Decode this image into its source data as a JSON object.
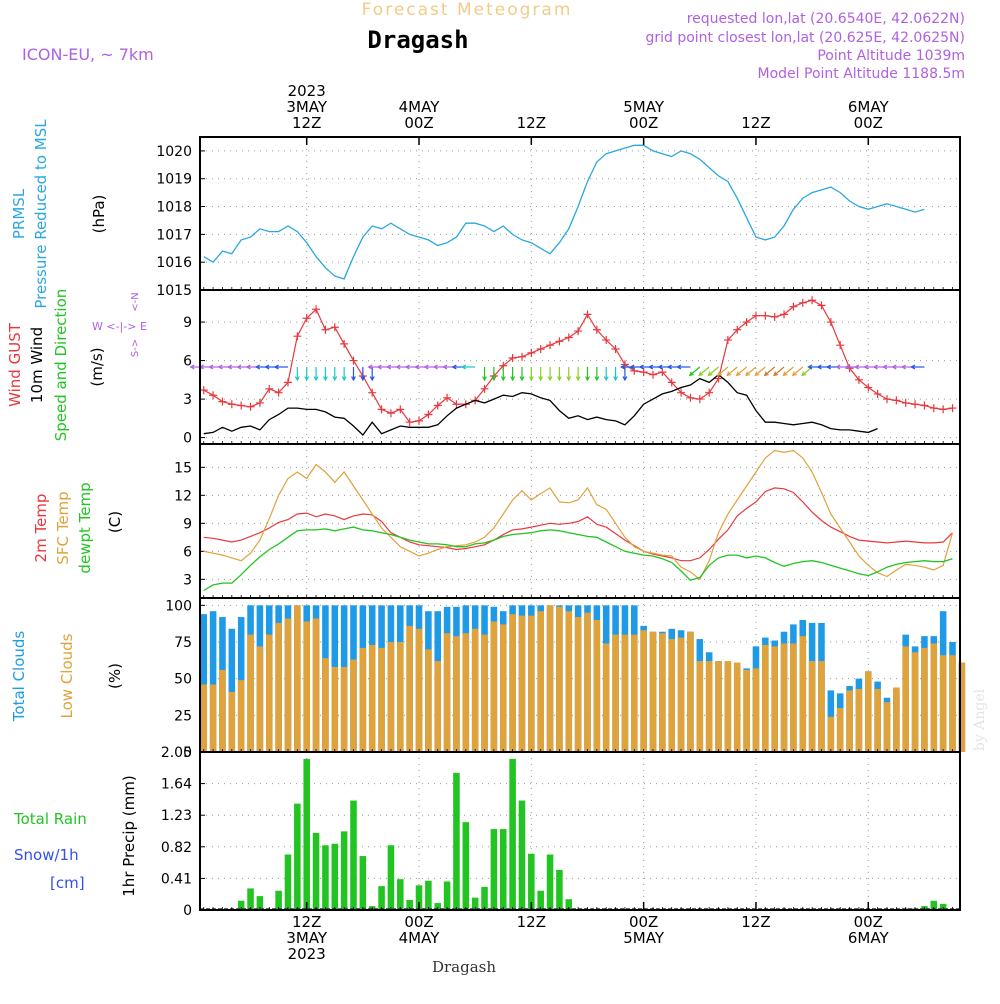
{
  "header": {
    "title": "Dragash",
    "subtitle": "Forecast Meteogram",
    "model": "ICON-EU, ~ 7km",
    "requested": "requested lon,lat (20.6540E, 42.0622N)",
    "gridpoint": "grid point closest lon,lat (20.625E, 42.0625N)",
    "point_alt": "Point Altitude 1039m",
    "model_alt": "Model Point Altitude 1188.5m",
    "footer": "Dragash",
    "credit": "by Angel"
  },
  "colors": {
    "pressure": "#2aa7e0",
    "gust": "#e8383d",
    "wind": "#000000",
    "green": "#22c422",
    "orange": "#e0a23a",
    "blue": "#1e9ae6",
    "purple": "#b060e0",
    "snow": "#3050e8",
    "grid": "#999999"
  },
  "time_axis": {
    "top_labels": [
      {
        "t": 4,
        "lines": [
          "2023",
          "3MAY",
          "12Z"
        ]
      },
      {
        "t": 16,
        "lines": [
          "4MAY",
          "00Z"
        ]
      },
      {
        "t": 28,
        "lines": [
          "12Z"
        ]
      },
      {
        "t": 40,
        "lines": [
          "5MAY",
          "00Z"
        ]
      },
      {
        "t": 52,
        "lines": [
          "12Z"
        ]
      },
      {
        "t": 64,
        "lines": [
          "6MAY",
          "00Z"
        ]
      }
    ],
    "bottom_labels": [
      {
        "t": 4,
        "lines": [
          "12Z",
          "3MAY",
          "2023"
        ]
      },
      {
        "t": 16,
        "lines": [
          "00Z",
          "4MAY"
        ]
      },
      {
        "t": 28,
        "lines": [
          "12Z"
        ]
      },
      {
        "t": 40,
        "lines": [
          "00Z",
          "5MAY"
        ]
      },
      {
        "t": 52,
        "lines": [
          "12Z"
        ]
      },
      {
        "t": 64,
        "lines": [
          "00Z",
          "6MAY"
        ]
      }
    ]
  },
  "chart_data": [
    {
      "type": "line",
      "title": "",
      "ylabel_left": [
        "PRMSL",
        "Pressure Reduced to MSL"
      ],
      "ylabel_unit": "(hPa)",
      "ylim": [
        1015,
        1020.5
      ],
      "yticks": [
        1015,
        1016,
        1017,
        1018,
        1019,
        1020
      ],
      "grid": true,
      "series": [
        {
          "name": "PRMSL",
          "x_start": -7,
          "values": [
            1016.2,
            1016.0,
            1016.4,
            1016.3,
            1016.8,
            1016.9,
            1017.2,
            1017.1,
            1017.1,
            1017.3,
            1017.1,
            1016.7,
            1016.2,
            1015.8,
            1015.5,
            1015.4,
            1016.2,
            1016.9,
            1017.3,
            1017.2,
            1017.4,
            1017.2,
            1017.0,
            1016.9,
            1016.8,
            1016.6,
            1016.7,
            1016.9,
            1017.4,
            1017.4,
            1017.3,
            1017.1,
            1017.3,
            1017.0,
            1016.8,
            1016.7,
            1016.5,
            1016.3,
            1016.7,
            1017.2,
            1018.0,
            1018.9,
            1019.6,
            1019.9,
            1020.0,
            1020.1,
            1020.2,
            1020.2,
            1020.0,
            1019.9,
            1019.8,
            1020.0,
            1019.9,
            1019.7,
            1019.4,
            1019.1,
            1018.9,
            1018.3,
            1017.6,
            1016.9,
            1016.8,
            1016.9,
            1017.3,
            1017.9,
            1018.3,
            1018.5,
            1018.6,
            1018.7,
            1018.5,
            1018.2,
            1018.0,
            1017.9,
            1018.0,
            1018.1,
            1018.0,
            1017.9,
            1017.8,
            1017.9
          ]
        }
      ]
    },
    {
      "type": "line",
      "title": "",
      "ylabel_left": [
        "Wind GUST",
        "10m Wind",
        "Speed and Direction"
      ],
      "ylabel_unit": "(m/s)",
      "compass": [
        "N",
        "W <-|-> E",
        "S"
      ],
      "ylim": [
        -0.5,
        11.5
      ],
      "yticks": [
        0,
        3,
        6,
        9
      ],
      "grid": true,
      "series": [
        {
          "name": "Wind GUST",
          "x_start": -7,
          "values": [
            3.7,
            3.3,
            2.8,
            2.6,
            2.5,
            2.4,
            2.7,
            3.8,
            3.5,
            4.3,
            7.9,
            9.3,
            10.0,
            8.4,
            8.6,
            7.3,
            6.0,
            4.8,
            3.5,
            2.2,
            1.9,
            2.2,
            1.2,
            1.3,
            1.8,
            2.5,
            3.1,
            2.6,
            2.6,
            2.9,
            3.8,
            4.8,
            5.6,
            6.2,
            6.3,
            6.6,
            6.9,
            7.2,
            7.5,
            7.8,
            8.3,
            9.6,
            8.4,
            7.6,
            6.9,
            5.7,
            5.2,
            5.1,
            4.9,
            5.1,
            4.3,
            3.5,
            3.1,
            3.0,
            3.5,
            4.6,
            7.6,
            8.4,
            9.0,
            9.5,
            9.5,
            9.4,
            9.6,
            10.2,
            10.5,
            10.7,
            10.3,
            9.0,
            7.2,
            5.4,
            4.5,
            3.9,
            3.4,
            3.0,
            2.9,
            2.7,
            2.6,
            2.5,
            2.3,
            2.2,
            2.3
          ]
        },
        {
          "name": "10m Wind",
          "x_start": -7,
          "values": [
            0.3,
            0.4,
            0.8,
            0.5,
            0.8,
            0.9,
            0.6,
            1.4,
            1.8,
            2.3,
            2.3,
            2.2,
            2.2,
            2.0,
            1.6,
            1.5,
            0.9,
            0.2,
            1.2,
            0.3,
            0.6,
            0.9,
            0.8,
            0.8,
            0.8,
            1.0,
            1.7,
            2.3,
            2.6,
            2.9,
            2.7,
            3.0,
            3.3,
            3.2,
            3.5,
            3.4,
            3.1,
            2.9,
            2.1,
            1.5,
            1.7,
            1.4,
            1.6,
            1.4,
            1.3,
            1.0,
            1.7,
            2.6,
            3.0,
            3.4,
            3.6,
            3.9,
            4.1,
            4.6,
            4.3,
            4.9,
            4.3,
            3.5,
            3.3,
            2.1,
            1.2,
            1.2,
            1.1,
            1.0,
            1.1,
            1.2,
            1.0,
            0.7,
            0.6,
            0.6,
            0.5,
            0.4,
            0.7
          ]
        }
      ],
      "wind_barbs": {
        "baseline": 5.5,
        "x_start": -7,
        "directions_deg": [
          270,
          270,
          270,
          270,
          270,
          270,
          270,
          270,
          270,
          270,
          180,
          180,
          180,
          180,
          180,
          180,
          180,
          180,
          180,
          270,
          270,
          270,
          270,
          270,
          270,
          270,
          270,
          270,
          270,
          270,
          180,
          180,
          180,
          180,
          180,
          180,
          180,
          180,
          180,
          180,
          180,
          180,
          180,
          180,
          180,
          180,
          270,
          270,
          270,
          270,
          270,
          270,
          270,
          230,
          230,
          230,
          230,
          230,
          230,
          230,
          230,
          230,
          230,
          230,
          230,
          230,
          270,
          270,
          270,
          270,
          270,
          270,
          270,
          270,
          270,
          270,
          270,
          270
        ],
        "colors": [
          "#b060e0",
          "#b060e0",
          "#b060e0",
          "#b060e0",
          "#b060e0",
          "#b060e0",
          "#b060e0",
          "#2255e8",
          "#2255e8",
          "#2255e8",
          "#18c8c8",
          "#18c8c8",
          "#18c8c8",
          "#18c8c8",
          "#18c8c8",
          "#18c8c8",
          "#2255e8",
          "#2255e8",
          "#2255e8",
          "#b060e0",
          "#b060e0",
          "#b060e0",
          "#b060e0",
          "#b060e0",
          "#b060e0",
          "#b060e0",
          "#b060e0",
          "#b060e0",
          "#2255e8",
          "#18c8c8",
          "#22c422",
          "#22c422",
          "#22c422",
          "#22c422",
          "#22c422",
          "#88d020",
          "#88d020",
          "#88d020",
          "#88d020",
          "#88d020",
          "#88d020",
          "#22c422",
          "#22c422",
          "#18c8c8",
          "#18c8c8",
          "#2255e8",
          "#2255e8",
          "#2255e8",
          "#2255e8",
          "#2255e8",
          "#2255e8",
          "#2255e8",
          "#2255e8",
          "#22c422",
          "#88d020",
          "#88d020",
          "#e0a23a",
          "#e0a23a",
          "#e0a23a",
          "#e0a23a",
          "#e0a23a",
          "#c87830",
          "#c87830",
          "#e0a23a",
          "#e0a23a",
          "#88d020",
          "#2255e8",
          "#2255e8",
          "#2255e8",
          "#b060e0",
          "#b060e0",
          "#b060e0",
          "#b060e0",
          "#b060e0",
          "#b060e0",
          "#b060e0",
          "#b060e0"
        ]
      }
    },
    {
      "type": "line",
      "title": "",
      "ylabel_left": [
        "2m Temp",
        "SFC Temp",
        "dewpt Temp"
      ],
      "ylabel_unit": "(C)",
      "ylim": [
        1,
        17.5
      ],
      "yticks": [
        3,
        6,
        9,
        12,
        15
      ],
      "grid": true,
      "series": [
        {
          "name": "2m Temp",
          "x_start": -7,
          "values": [
            7.5,
            7.4,
            7.2,
            7.0,
            7.2,
            7.6,
            8.0,
            8.5,
            9.1,
            9.4,
            10.0,
            10.1,
            9.7,
            10.0,
            9.8,
            9.4,
            9.8,
            10.0,
            9.9,
            9.2,
            8.0,
            7.5,
            7.0,
            6.7,
            6.6,
            6.5,
            6.4,
            6.2,
            6.3,
            6.5,
            6.7,
            7.2,
            7.8,
            8.3,
            8.4,
            8.6,
            8.8,
            9.0,
            8.9,
            9.0,
            9.2,
            9.7,
            8.9,
            8.6,
            7.9,
            7.2,
            6.6,
            6.0,
            5.7,
            5.5,
            5.3,
            5.0,
            5.0,
            5.3,
            6.2,
            7.3,
            8.3,
            9.8,
            10.6,
            11.3,
            12.4,
            12.8,
            12.7,
            12.3,
            11.3,
            10.2,
            9.3,
            8.6,
            8.1,
            7.6,
            7.2,
            7.1,
            7.0,
            6.9,
            7.0,
            7.1,
            7.0,
            6.9,
            6.9,
            7.0,
            8.0
          ]
        },
        {
          "name": "SFC Temp",
          "x_start": -7,
          "values": [
            6.0,
            5.8,
            5.6,
            5.3,
            5.0,
            5.8,
            7.2,
            9.5,
            12.0,
            13.8,
            14.5,
            13.8,
            15.3,
            14.5,
            13.4,
            14.5,
            13.0,
            11.5,
            10.0,
            8.5,
            7.5,
            6.5,
            6.0,
            5.5,
            5.8,
            6.2,
            6.5,
            6.6,
            6.7,
            7.0,
            7.5,
            8.5,
            10.0,
            11.5,
            12.5,
            11.5,
            12.2,
            12.8,
            11.3,
            11.2,
            11.5,
            12.8,
            11.0,
            10.5,
            9.0,
            7.5,
            6.5,
            6.0,
            5.8,
            5.6,
            5.5,
            4.3,
            3.8,
            3.0,
            5.0,
            8.0,
            10.0,
            11.5,
            13.0,
            14.5,
            16.0,
            16.8,
            16.6,
            16.8,
            16.0,
            14.5,
            12.3,
            10.0,
            8.5,
            7.0,
            5.5,
            4.5,
            3.7,
            3.3,
            4.0,
            4.6,
            4.5,
            4.3,
            4.0,
            4.5,
            8.0
          ]
        },
        {
          "name": "dewpt Temp",
          "x_start": -7,
          "values": [
            1.8,
            2.4,
            2.6,
            2.6,
            3.5,
            4.5,
            5.4,
            6.2,
            6.8,
            7.5,
            8.2,
            8.3,
            8.3,
            8.4,
            8.2,
            8.4,
            8.6,
            8.3,
            8.2,
            8.0,
            7.8,
            7.5,
            7.2,
            7.0,
            6.8,
            6.8,
            6.7,
            6.5,
            6.5,
            6.8,
            6.9,
            7.2,
            7.6,
            7.8,
            7.9,
            8.0,
            8.2,
            8.3,
            8.2,
            8.0,
            7.8,
            7.6,
            7.5,
            7.0,
            6.5,
            6.0,
            5.8,
            5.6,
            5.5,
            5.2,
            4.8,
            3.9,
            2.9,
            3.2,
            4.5,
            5.3,
            5.6,
            5.6,
            5.3,
            5.5,
            5.3,
            4.8,
            4.4,
            4.7,
            4.9,
            5.0,
            4.8,
            4.5,
            4.2,
            3.9,
            3.6,
            3.4,
            3.8,
            4.3,
            4.6,
            4.8,
            4.9,
            5.0,
            4.9,
            4.9,
            5.2
          ]
        }
      ]
    },
    {
      "type": "bar",
      "title": "",
      "ylabel_left": [
        "Total Clouds",
        "Low Clouds"
      ],
      "ylabel_unit": "(%)",
      "ylim": [
        0,
        105
      ],
      "yticks": [
        0,
        25,
        50,
        75,
        100
      ],
      "grid": true,
      "series": [
        {
          "name": "Total Clouds",
          "x_start": -7,
          "values": [
            94,
            96,
            92,
            84,
            92,
            100,
            100,
            100,
            100,
            100,
            100,
            100,
            100,
            100,
            100,
            100,
            100,
            100,
            100,
            100,
            100,
            100,
            100,
            100,
            96,
            96,
            99,
            99,
            100,
            100,
            100,
            99,
            96,
            100,
            100,
            100,
            100,
            100,
            100,
            100,
            100,
            100,
            100,
            100,
            100,
            100,
            100,
            86,
            82,
            82,
            84,
            83,
            82,
            77,
            68,
            62,
            61,
            60,
            57,
            72,
            78,
            76,
            82,
            87,
            90,
            88,
            88,
            42,
            40,
            45,
            50,
            55,
            48,
            37,
            42,
            80,
            72,
            79,
            79,
            96,
            75,
            61
          ]
        },
        {
          "name": "Low Clouds",
          "x_start": -7,
          "values": [
            46,
            46,
            56,
            41,
            49,
            80,
            72,
            80,
            88,
            91,
            100,
            89,
            91,
            64,
            58,
            58,
            63,
            71,
            73,
            71,
            75,
            75,
            86,
            84,
            70,
            62,
            81,
            79,
            81,
            84,
            80,
            89,
            87,
            94,
            93,
            93,
            96,
            100,
            99,
            96,
            92,
            95,
            90,
            74,
            80,
            80,
            80,
            83,
            82,
            81,
            77,
            78,
            82,
            62,
            62,
            62,
            62,
            61,
            56,
            57,
            73,
            72,
            74,
            74,
            79,
            62,
            62,
            24,
            30,
            42,
            43,
            55,
            43,
            34,
            44,
            72,
            68,
            71,
            74,
            66,
            66,
            61
          ]
        }
      ]
    },
    {
      "type": "bar",
      "title": "",
      "ylabel_left": [
        "Total Rain",
        "Snow/1h",
        "[cm]"
      ],
      "ylabel_unit": "1hr Precip (mm)",
      "ylim": [
        0,
        2.05
      ],
      "yticks": [
        0,
        0.41,
        0.82,
        1.23,
        1.64,
        2.05
      ],
      "grid": true,
      "series": [
        {
          "name": "Total Rain",
          "x_start": -7,
          "values": [
            0,
            0,
            0,
            0,
            0.12,
            0.28,
            0.18,
            0,
            0.25,
            0.72,
            1.38,
            1.96,
            1.0,
            0.84,
            0.86,
            1.02,
            1.42,
            0.7,
            0.05,
            0.31,
            0.84,
            0.4,
            0.13,
            0.32,
            0.38,
            0.09,
            0.37,
            1.78,
            1.14,
            0.16,
            0.3,
            1.05,
            1.05,
            1.96,
            1.42,
            0.73,
            0.25,
            0.72,
            0.52,
            0.14,
            0,
            0,
            0,
            0,
            0,
            0,
            0,
            0,
            0,
            0,
            0,
            0,
            0,
            0,
            0,
            0,
            0,
            0,
            0,
            0,
            0,
            0,
            0,
            0,
            0,
            0,
            0,
            0,
            0,
            0,
            0,
            0,
            0,
            0,
            0,
            0.02,
            0.02,
            0.05,
            0.12,
            0.08,
            0
          ]
        }
      ]
    }
  ]
}
